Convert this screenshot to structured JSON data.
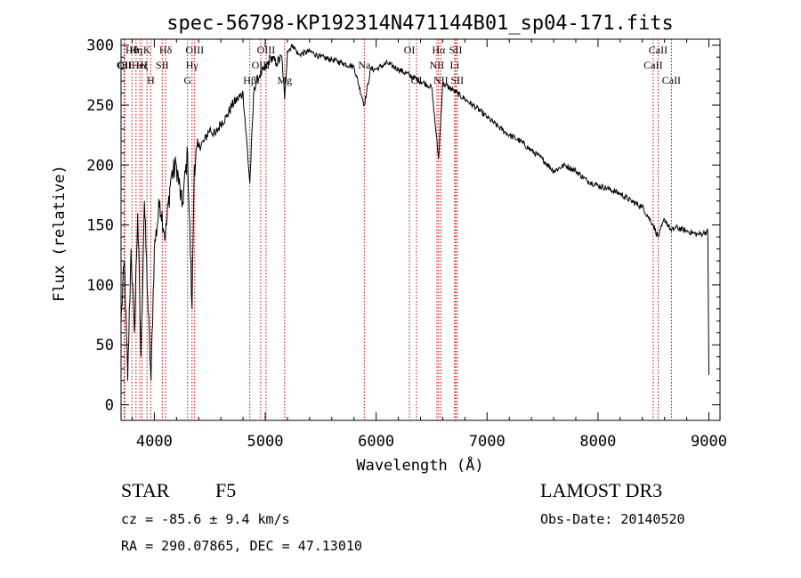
{
  "chart_data": {
    "type": "line",
    "title": "spec-56798-KP192314N471144B01_sp04-171.fits",
    "xlabel": "Wavelength (Å)",
    "ylabel": "Flux (relative)",
    "xlim": [
      3700,
      9100
    ],
    "ylim": [
      -13,
      305
    ],
    "xticks": [
      4000,
      5000,
      6000,
      7000,
      8000,
      9000
    ],
    "yticks": [
      0,
      50,
      100,
      150,
      200,
      250,
      300
    ],
    "grid": false,
    "series": [
      {
        "name": "spectrum",
        "x": [
          3700,
          3730,
          3760,
          3790,
          3820,
          3850,
          3880,
          3910,
          3940,
          3970,
          4000,
          4050,
          4100,
          4150,
          4200,
          4250,
          4300,
          4340,
          4360,
          4400,
          4450,
          4500,
          4550,
          4600,
          4650,
          4700,
          4750,
          4800,
          4861,
          4900,
          4950,
          5000,
          5050,
          5100,
          5150,
          5175,
          5200,
          5250,
          5300,
          5400,
          5500,
          5600,
          5700,
          5800,
          5893,
          5950,
          6000,
          6100,
          6200,
          6300,
          6400,
          6500,
          6563,
          6600,
          6700,
          6800,
          6900,
          7000,
          7100,
          7200,
          7300,
          7400,
          7500,
          7600,
          7700,
          7800,
          7900,
          8000,
          8100,
          8200,
          8300,
          8400,
          8498,
          8542,
          8600,
          8662,
          8700,
          8800,
          8900,
          8950,
          8990,
          9000
        ],
        "y": [
          70,
          120,
          20,
          130,
          60,
          160,
          40,
          170,
          90,
          20,
          130,
          170,
          140,
          190,
          200,
          165,
          210,
          80,
          200,
          215,
          220,
          230,
          225,
          235,
          240,
          250,
          255,
          260,
          185,
          265,
          275,
          280,
          290,
          285,
          290,
          255,
          295,
          300,
          292,
          295,
          290,
          288,
          285,
          282,
          250,
          280,
          280,
          285,
          280,
          275,
          270,
          265,
          205,
          268,
          262,
          255,
          248,
          240,
          232,
          225,
          220,
          212,
          205,
          195,
          200,
          195,
          187,
          183,
          180,
          176,
          170,
          165,
          150,
          140,
          155,
          145,
          148,
          145,
          142,
          143,
          145,
          25
        ]
      }
    ],
    "line_markers": [
      {
        "wavelength": 3727,
        "label": "OII",
        "row": 1
      },
      {
        "wavelength": 3734,
        "label": "CII",
        "row": 1
      },
      {
        "wavelength": 3798,
        "label": "Hθ",
        "row": 0
      },
      {
        "wavelength": 3835,
        "label": "Hη",
        "row": 0
      },
      {
        "wavelength": 3889,
        "label": "Hζ",
        "row": 1
      },
      {
        "wavelength": 3869,
        "label": "HeI",
        "row": 1
      },
      {
        "wavelength": 3934,
        "label": "K",
        "row": 0
      },
      {
        "wavelength": 3968,
        "label": "H",
        "row": 2
      },
      {
        "wavelength": 4072,
        "label": "SII",
        "row": 1
      },
      {
        "wavelength": 4102,
        "label": "Hδ",
        "row": 0
      },
      {
        "wavelength": 4300,
        "label": "G",
        "row": 2
      },
      {
        "wavelength": 4340,
        "label": "Hγ",
        "row": 1
      },
      {
        "wavelength": 4364,
        "label": "OIII",
        "row": 0
      },
      {
        "wavelength": 4861,
        "label": "Hβ",
        "row": 2
      },
      {
        "wavelength": 4959,
        "label": "OIII",
        "row": 1
      },
      {
        "wavelength": 5007,
        "label": "OIII",
        "row": 0
      },
      {
        "wavelength": 5175,
        "label": "Mg",
        "row": 2
      },
      {
        "wavelength": 5893,
        "label": "Na",
        "row": 1
      },
      {
        "wavelength": 6300,
        "label": "OI",
        "row": 0
      },
      {
        "wavelength": 6364,
        "label": "OI",
        "row": 2
      },
      {
        "wavelength": 6548,
        "label": "NII",
        "row": 1
      },
      {
        "wavelength": 6563,
        "label": "Hα",
        "row": 0
      },
      {
        "wavelength": 6583,
        "label": "NII",
        "row": 2
      },
      {
        "wavelength": 6708,
        "label": "Li",
        "row": 1
      },
      {
        "wavelength": 6717,
        "label": "SII",
        "row": 0
      },
      {
        "wavelength": 6731,
        "label": "SII",
        "row": 2
      },
      {
        "wavelength": 8498,
        "label": "CaII",
        "row": 1
      },
      {
        "wavelength": 8542,
        "label": "CaII",
        "row": 0
      },
      {
        "wavelength": 8662,
        "label": "CaII",
        "row": 2
      }
    ]
  },
  "info": {
    "object_class": "STAR",
    "subclass": "F5",
    "survey": "LAMOST DR3",
    "redshift": "cz = -85.6 ± 9.4 km/s",
    "obs_date": "Obs-Date: 20140520",
    "coords": "RA = 290.07865, DEC =  47.13010"
  },
  "colors": {
    "spectrum": "#000000",
    "line_marker": "#cc0000",
    "axis": "#000000",
    "background": "#ffffff"
  }
}
